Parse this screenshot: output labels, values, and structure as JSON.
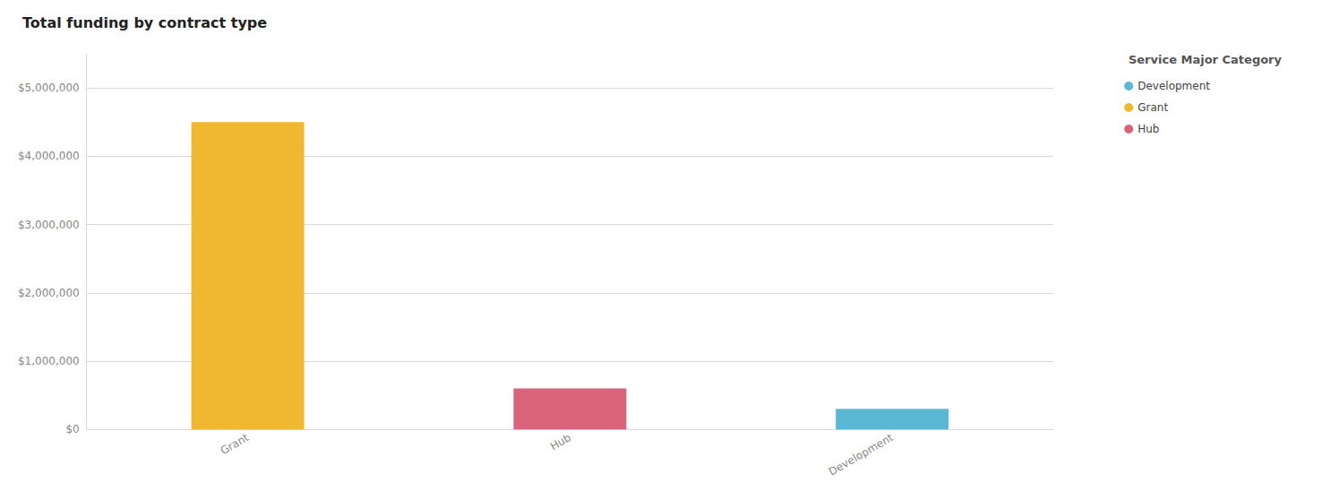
{
  "chart_data": {
    "type": "bar",
    "title": "Total funding by contract type",
    "legend_title": "Service Major Category",
    "categories": [
      "Grant",
      "Hub",
      "Development"
    ],
    "series": [
      {
        "name": "Development",
        "color": "#5BB8D4",
        "values": [
          null,
          null,
          300000
        ]
      },
      {
        "name": "Grant",
        "color": "#F0B830",
        "values": [
          4500000,
          null,
          null
        ]
      },
      {
        "name": "Hub",
        "color": "#D9637A",
        "values": [
          null,
          600000,
          null
        ]
      }
    ],
    "ylim": [
      0,
      5500000
    ],
    "yticks": [
      {
        "value": 0,
        "label": "$0"
      },
      {
        "value": 1000000,
        "label": "$1,000,000"
      },
      {
        "value": 2000000,
        "label": "$2,000,000"
      },
      {
        "value": 3000000,
        "label": "$3,000,000"
      },
      {
        "value": 4000000,
        "label": "$4,000,000"
      },
      {
        "value": 5000000,
        "label": "$5,000,000"
      }
    ],
    "grid": true,
    "legend": "right"
  }
}
